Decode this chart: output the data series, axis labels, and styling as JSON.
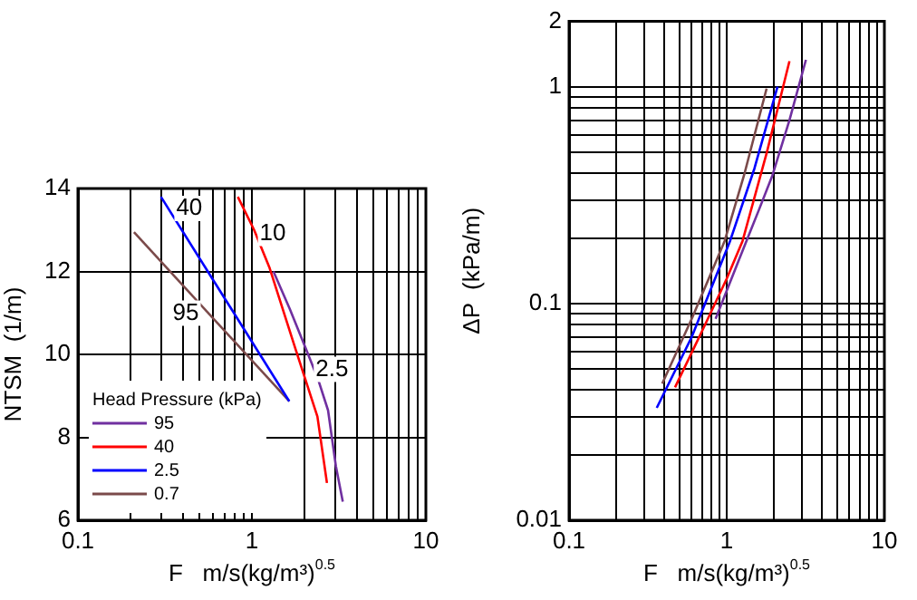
{
  "chart_data": [
    {
      "type": "line",
      "xlabel": "F   m/s(kg/m³)$^{0.5}$",
      "ylabel": "NTSM  (1/m)",
      "legend_title": "Head Pressure (kPa)",
      "legend": "bottom left",
      "log": "x",
      "grid": true,
      "xlim": [
        0.1,
        10
      ],
      "xticks": [
        0.1,
        {
          "value": 0.2,
          "label": null
        },
        {
          "value": 0.3,
          "label": null
        },
        {
          "value": 0.4,
          "label": null
        },
        {
          "value": 0.5,
          "label": null
        },
        {
          "value": 0.6,
          "label": null
        },
        {
          "value": 0.7,
          "label": null
        },
        {
          "value": 0.8,
          "label": null
        },
        {
          "value": 0.9,
          "label": null
        },
        1,
        {
          "value": 2,
          "label": null
        },
        {
          "value": 3,
          "label": null
        },
        {
          "value": 4,
          "label": null
        },
        {
          "value": 5,
          "label": null
        },
        {
          "value": 6,
          "label": null
        },
        {
          "value": 7,
          "label": null
        },
        {
          "value": 8,
          "label": null
        },
        {
          "value": 9,
          "label": null
        },
        10
      ],
      "ylim": [
        6,
        14
      ],
      "yticks": [
        6,
        8,
        10,
        12,
        14
      ],
      "series": [
        {
          "name": "95",
          "color": "#7030a0",
          "x": [
            1.33,
            1.65,
            2.06,
            2.4,
            2.74,
            3.04,
            3.33
          ],
          "values": [
            12.0,
            11.1,
            10.1,
            9.4,
            8.65,
            7.3,
            6.45
          ]
        },
        {
          "name": "40",
          "color": "#ff0000",
          "x": [
            0.83,
            1.03,
            1.26,
            1.79,
            2.38,
            2.7
          ],
          "values": [
            13.8,
            13.0,
            12.1,
            10.1,
            8.5,
            6.9
          ]
        },
        {
          "name": "2.5",
          "color": "#0000ff",
          "x": [
            0.3,
            1.64
          ],
          "values": [
            13.8,
            8.87
          ]
        },
        {
          "name": "0.7",
          "color": "#7b4a4a",
          "x": [
            0.21,
            1.64
          ],
          "values": [
            12.95,
            8.87
          ]
        }
      ],
      "annotations": [
        "40",
        "10",
        "95",
        "2.5"
      ]
    },
    {
      "type": "line",
      "xlabel": "F   m/s(kg/m³)$^{0.5}$",
      "ylabel": "ΔP  (kPa/m)",
      "log": "xy",
      "grid": true,
      "xlim": [
        0.1,
        10
      ],
      "xticks": [
        0.1,
        {
          "value": 0.2,
          "label": null
        },
        {
          "value": 0.3,
          "label": null
        },
        {
          "value": 0.4,
          "label": null
        },
        {
          "value": 0.5,
          "label": null
        },
        {
          "value": 0.6,
          "label": null
        },
        {
          "value": 0.7,
          "label": null
        },
        {
          "value": 0.8,
          "label": null
        },
        {
          "value": 0.9,
          "label": null
        },
        1,
        {
          "value": 2,
          "label": null
        },
        {
          "value": 3,
          "label": null
        },
        {
          "value": 4,
          "label": null
        },
        {
          "value": 5,
          "label": null
        },
        {
          "value": 6,
          "label": null
        },
        {
          "value": 7,
          "label": null
        },
        {
          "value": 8,
          "label": null
        },
        {
          "value": 9,
          "label": null
        },
        10
      ],
      "ylim": [
        0.01,
        2
      ],
      "yticks": [
        0.01,
        {
          "value": 0.02,
          "label": null
        },
        {
          "value": 0.03,
          "label": null
        },
        {
          "value": 0.04,
          "label": null
        },
        {
          "value": 0.05,
          "label": null
        },
        {
          "value": 0.06,
          "label": null
        },
        {
          "value": 0.07,
          "label": null
        },
        {
          "value": 0.08,
          "label": null
        },
        {
          "value": 0.09,
          "label": null
        },
        0.1,
        {
          "value": 0.2,
          "label": null
        },
        {
          "value": 0.3,
          "label": null
        },
        {
          "value": 0.4,
          "label": null
        },
        {
          "value": 0.5,
          "label": null
        },
        {
          "value": 0.6,
          "label": null
        },
        {
          "value": 0.7,
          "label": null
        },
        {
          "value": 0.8,
          "label": null
        },
        {
          "value": 0.9,
          "label": null
        },
        1,
        2
      ],
      "series": [
        {
          "color": "#7030a0",
          "x": [
            0.85,
            1.2,
            1.6,
            1.95,
            2.5,
            3.18
          ],
          "values": [
            0.085,
            0.16,
            0.27,
            0.39,
            0.7,
            1.33
          ]
        },
        {
          "color": "#ff0000",
          "x": [
            0.47,
            0.7,
            1.0,
            1.26,
            1.8,
            2.5
          ],
          "values": [
            0.041,
            0.075,
            0.13,
            0.194,
            0.5,
            1.31
          ]
        },
        {
          "color": "#0000ff",
          "x": [
            0.36,
            0.6,
            1.05,
            1.5,
            2.1
          ],
          "values": [
            0.033,
            0.07,
            0.194,
            0.42,
            1.0
          ]
        },
        {
          "color": "#7b4a4a",
          "x": [
            0.39,
            0.6,
            0.97,
            1.3,
            1.79
          ],
          "values": [
            0.0427,
            0.085,
            0.194,
            0.4,
            0.98
          ]
        }
      ]
    }
  ]
}
